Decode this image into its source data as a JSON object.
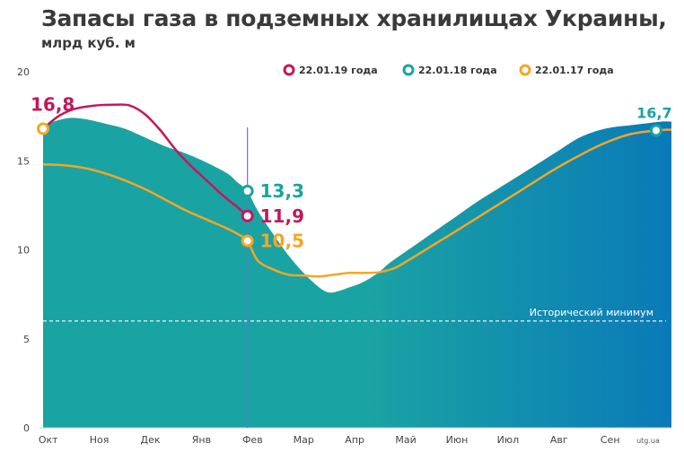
{
  "chart_data": {
    "type": "area",
    "title": "Запасы газа в подземных хранилищах Украины,",
    "subtitle": "млрд куб. м",
    "x_labels": [
      "Окт",
      "Ноя",
      "Дек",
      "Янв",
      "Фев",
      "Мар",
      "Апр",
      "Май",
      "Июн",
      "Июл",
      "Авг",
      "Сен"
    ],
    "y_ticks": [
      0,
      5,
      10,
      15,
      20
    ],
    "ylim": [
      0,
      20
    ],
    "xlim": [
      0,
      12.3
    ],
    "colors": {
      "area": "#1aa3a3",
      "area_dark": "#0a7ab8",
      "line_2019": "#c2185b",
      "line_2017": "#f5a623",
      "marker_2018": "#1aa3a3",
      "marker_start": "#f5a623",
      "marker_end": "#1aa3a3",
      "vline": "#8b5cf6",
      "min_line": "#ffffff"
    },
    "legend": [
      {
        "label": "22.01.19 года",
        "color": "#c2185b"
      },
      {
        "label": "22.01.18 года",
        "color": "#1aa3a3"
      },
      {
        "label": "22.01.17 года",
        "color": "#f5a623"
      }
    ],
    "series_area_2018": {
      "name": "22.01.18 года",
      "x": [
        0,
        0.2,
        0.5,
        0.8,
        1.2,
        1.6,
        2.0,
        2.4,
        2.8,
        3.2,
        3.6,
        3.8,
        4.0,
        4.2,
        4.5,
        4.8,
        5.1,
        5.4,
        5.6,
        5.8,
        6.0,
        6.2,
        6.4,
        6.6,
        6.8,
        7.2,
        7.6,
        8.0,
        8.5,
        9.0,
        9.5,
        10.0,
        10.5,
        11.0,
        11.5,
        11.8,
        12.1,
        12.3
      ],
      "y": [
        17.0,
        17.2,
        17.4,
        17.35,
        17.1,
        16.8,
        16.3,
        15.8,
        15.4,
        14.9,
        14.3,
        13.8,
        13.3,
        12.2,
        10.9,
        9.7,
        8.7,
        7.9,
        7.6,
        7.7,
        7.9,
        8.1,
        8.4,
        8.8,
        9.3,
        10.1,
        10.9,
        11.7,
        12.7,
        13.6,
        14.5,
        15.4,
        16.3,
        16.8,
        17.0,
        17.1,
        17.2,
        17.2
      ]
    },
    "series_2019": {
      "name": "22.01.19 года",
      "x": [
        0,
        0.3,
        0.6,
        1.0,
        1.4,
        1.7,
        2.0,
        2.3,
        2.6,
        2.9,
        3.2,
        3.5,
        3.8,
        4.0
      ],
      "y": [
        16.8,
        17.5,
        17.9,
        18.1,
        18.15,
        18.1,
        17.6,
        16.7,
        15.6,
        14.7,
        13.9,
        13.1,
        12.4,
        11.9
      ]
    },
    "series_2017": {
      "name": "22.01.17 года",
      "x": [
        0,
        0.4,
        0.8,
        1.2,
        1.6,
        2.0,
        2.4,
        2.8,
        3.2,
        3.6,
        3.8,
        4.0,
        4.2,
        4.5,
        4.8,
        5.1,
        5.4,
        5.7,
        6.0,
        6.3,
        6.6,
        6.9,
        7.2,
        7.6,
        8.0,
        8.5,
        9.0,
        9.5,
        10.0,
        10.5,
        11.0,
        11.5,
        12.0,
        12.3
      ],
      "y": [
        14.8,
        14.75,
        14.6,
        14.3,
        13.9,
        13.4,
        12.8,
        12.2,
        11.7,
        11.2,
        10.9,
        10.5,
        9.4,
        8.9,
        8.6,
        8.55,
        8.5,
        8.6,
        8.7,
        8.7,
        8.75,
        9.0,
        9.5,
        10.2,
        10.9,
        11.8,
        12.7,
        13.6,
        14.5,
        15.3,
        16.0,
        16.5,
        16.7,
        16.75
      ]
    },
    "historical_min": {
      "value": 6.0,
      "label": "Исторический минимум"
    },
    "vline_x": 4.0,
    "markers": [
      {
        "x": 0,
        "y": 16.8,
        "label": "16,8",
        "color": "#c2185b",
        "ring": "#f5a623",
        "pos": "above-left"
      },
      {
        "x": 4.0,
        "y": 13.3,
        "label": "13,3",
        "color": "#1aa3a3",
        "ring": "#1aa3a3",
        "pos": "right"
      },
      {
        "x": 4.0,
        "y": 11.9,
        "label": "11,9",
        "color": "#c2185b",
        "ring": "#c2185b",
        "pos": "right"
      },
      {
        "x": 4.0,
        "y": 10.5,
        "label": "10,5",
        "color": "#f5a623",
        "ring": "#f5a623",
        "pos": "right"
      },
      {
        "x": 12.0,
        "y": 16.7,
        "label": "16,7",
        "color": "#1aa3a3",
        "ring": "#1aa3a3",
        "pos": "above"
      }
    ],
    "source": "utg.ua"
  }
}
